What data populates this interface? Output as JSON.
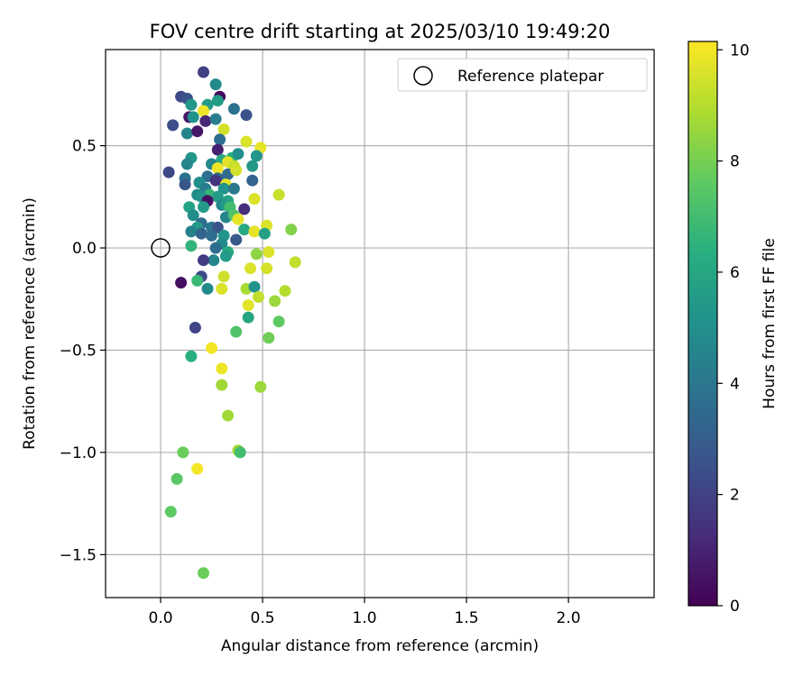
{
  "chart_data": {
    "type": "scatter",
    "title": "FOV centre drift starting at 2025/03/10 19:49:20",
    "xlabel": "Angular distance from reference (arcmin)",
    "ylabel": "Rotation from reference (arcmin)",
    "xlim": [
      -0.27,
      2.42
    ],
    "ylim": [
      -1.71,
      0.97
    ],
    "xticks": [
      0.0,
      0.5,
      1.0,
      1.5,
      2.0
    ],
    "xtick_labels": [
      "0.0",
      "0.5",
      "1.0",
      "1.5",
      "2.0"
    ],
    "yticks": [
      -1.5,
      -1.0,
      -0.5,
      0.0,
      0.5
    ],
    "ytick_labels": [
      "−1.5",
      "−1.0",
      "−0.5",
      "0.0",
      "0.5"
    ],
    "grid": true,
    "legend": {
      "placement": "top-right",
      "entries": [
        "Reference platepar"
      ]
    },
    "reference_point": {
      "x": 0.0,
      "y": 0.0
    },
    "colorbar": {
      "label": "Hours from first FF file",
      "min": 0,
      "max": 10.15,
      "ticks": [
        0,
        2,
        4,
        6,
        8,
        10
      ],
      "tick_labels": [
        "0",
        "2",
        "4",
        "6",
        "8",
        "10"
      ],
      "colormap": "viridis"
    },
    "points": [
      [
        0.21,
        0.86,
        2.0
      ],
      [
        0.27,
        0.8,
        4.8
      ],
      [
        0.29,
        0.74,
        0.3
      ],
      [
        0.1,
        0.74,
        2.2
      ],
      [
        0.13,
        0.73,
        2.6
      ],
      [
        0.15,
        0.7,
        5.4
      ],
      [
        0.23,
        0.7,
        5.5
      ],
      [
        0.28,
        0.72,
        5.6
      ],
      [
        0.36,
        0.68,
        3.8
      ],
      [
        0.42,
        0.65,
        2.6
      ],
      [
        0.14,
        0.64,
        0.6
      ],
      [
        0.16,
        0.64,
        5.1
      ],
      [
        0.21,
        0.67,
        9.9
      ],
      [
        0.22,
        0.62,
        1.1
      ],
      [
        0.27,
        0.63,
        4.3
      ],
      [
        0.06,
        0.6,
        2.4
      ],
      [
        0.13,
        0.56,
        4.6
      ],
      [
        0.18,
        0.57,
        0.6
      ],
      [
        0.31,
        0.58,
        9.5
      ],
      [
        0.29,
        0.53,
        3.6
      ],
      [
        0.42,
        0.52,
        9.6
      ],
      [
        0.49,
        0.49,
        9.8
      ],
      [
        0.28,
        0.48,
        0.9
      ],
      [
        0.47,
        0.45,
        5.3
      ],
      [
        0.15,
        0.44,
        5.3
      ],
      [
        0.3,
        0.43,
        6.1
      ],
      [
        0.35,
        0.44,
        6.2
      ],
      [
        0.38,
        0.46,
        5.0
      ],
      [
        0.13,
        0.41,
        4.6
      ],
      [
        0.25,
        0.41,
        4.7
      ],
      [
        0.33,
        0.42,
        9.7
      ],
      [
        0.36,
        0.4,
        9.3
      ],
      [
        0.28,
        0.39,
        9.9
      ],
      [
        0.45,
        0.4,
        5.4
      ],
      [
        0.04,
        0.37,
        2.2
      ],
      [
        0.23,
        0.35,
        3.6
      ],
      [
        0.28,
        0.34,
        3.4
      ],
      [
        0.33,
        0.36,
        3.5
      ],
      [
        0.37,
        0.38,
        9.5
      ],
      [
        0.12,
        0.34,
        3.8
      ],
      [
        0.19,
        0.32,
        5.0
      ],
      [
        0.27,
        0.33,
        1.5
      ],
      [
        0.45,
        0.33,
        3.2
      ],
      [
        0.12,
        0.31,
        2.7
      ],
      [
        0.32,
        0.31,
        9.8
      ],
      [
        0.22,
        0.29,
        4.2
      ],
      [
        0.31,
        0.29,
        5.2
      ],
      [
        0.36,
        0.29,
        4.0
      ],
      [
        0.18,
        0.26,
        4.8
      ],
      [
        0.24,
        0.26,
        6.7
      ],
      [
        0.2,
        0.25,
        5.2
      ],
      [
        0.28,
        0.25,
        5.5
      ],
      [
        0.33,
        0.23,
        5.8
      ],
      [
        0.46,
        0.24,
        9.6
      ],
      [
        0.58,
        0.26,
        9.3
      ],
      [
        0.23,
        0.23,
        0.5
      ],
      [
        0.3,
        0.21,
        4.7
      ],
      [
        0.32,
        0.21,
        5.5
      ],
      [
        0.34,
        0.2,
        7.0
      ],
      [
        0.14,
        0.2,
        5.8
      ],
      [
        0.21,
        0.2,
        5.5
      ],
      [
        0.41,
        0.19,
        1.3
      ],
      [
        0.16,
        0.16,
        4.9
      ],
      [
        0.32,
        0.15,
        4.6
      ],
      [
        0.36,
        0.16,
        7.3
      ],
      [
        0.38,
        0.14,
        9.8
      ],
      [
        0.2,
        0.12,
        3.6
      ],
      [
        0.25,
        0.1,
        4.0
      ],
      [
        0.18,
        0.1,
        5.5
      ],
      [
        0.28,
        0.1,
        2.6
      ],
      [
        0.41,
        0.09,
        6.1
      ],
      [
        0.46,
        0.08,
        9.8
      ],
      [
        0.52,
        0.11,
        9.6
      ],
      [
        0.51,
        0.07,
        5.7
      ],
      [
        0.64,
        0.09,
        8.2
      ],
      [
        0.15,
        0.08,
        4.4
      ],
      [
        0.2,
        0.07,
        3.3
      ],
      [
        0.25,
        0.06,
        3.6
      ],
      [
        0.31,
        0.06,
        5.3
      ],
      [
        0.3,
        0.02,
        4.8
      ],
      [
        0.37,
        0.04,
        2.8
      ],
      [
        0.27,
        0.0,
        3.6
      ],
      [
        0.15,
        0.01,
        6.6
      ],
      [
        0.33,
        -0.02,
        6.2
      ],
      [
        0.47,
        -0.03,
        8.4
      ],
      [
        0.53,
        -0.02,
        9.6
      ],
      [
        0.32,
        -0.04,
        5.5
      ],
      [
        0.26,
        -0.06,
        4.6
      ],
      [
        0.21,
        -0.06,
        1.8
      ],
      [
        0.66,
        -0.07,
        9.2
      ],
      [
        0.44,
        -0.1,
        9.6
      ],
      [
        0.52,
        -0.1,
        9.5
      ],
      [
        0.2,
        -0.14,
        2.3
      ],
      [
        0.31,
        -0.14,
        9.4
      ],
      [
        0.1,
        -0.17,
        0.4
      ],
      [
        0.18,
        -0.16,
        6.8
      ],
      [
        0.23,
        -0.2,
        4.8
      ],
      [
        0.3,
        -0.2,
        9.6
      ],
      [
        0.42,
        -0.2,
        8.8
      ],
      [
        0.46,
        -0.19,
        5.1
      ],
      [
        0.61,
        -0.21,
        9.0
      ],
      [
        0.48,
        -0.24,
        9.2
      ],
      [
        0.56,
        -0.26,
        8.6
      ],
      [
        0.43,
        -0.28,
        9.7
      ],
      [
        0.43,
        -0.34,
        6.0
      ],
      [
        0.58,
        -0.36,
        7.6
      ],
      [
        0.17,
        -0.39,
        2.1
      ],
      [
        0.37,
        -0.41,
        7.3
      ],
      [
        0.53,
        -0.44,
        7.9
      ],
      [
        0.25,
        -0.49,
        10.0
      ],
      [
        0.15,
        -0.53,
        6.4
      ],
      [
        0.3,
        -0.59,
        9.9
      ],
      [
        0.3,
        -0.67,
        8.7
      ],
      [
        0.49,
        -0.68,
        8.6
      ],
      [
        0.33,
        -0.82,
        8.7
      ],
      [
        0.38,
        -0.99,
        8.7
      ],
      [
        0.39,
        -1.0,
        7.0
      ],
      [
        0.11,
        -1.0,
        7.8
      ],
      [
        0.18,
        -1.08,
        10.0
      ],
      [
        0.08,
        -1.13,
        7.5
      ],
      [
        0.05,
        -1.29,
        7.6
      ],
      [
        0.21,
        -1.59,
        7.8
      ]
    ]
  }
}
